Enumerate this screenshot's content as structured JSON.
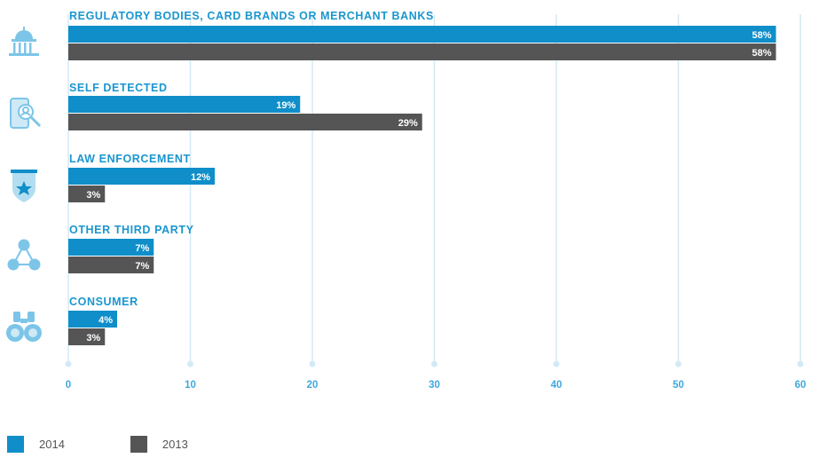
{
  "colors": {
    "series_2014": "#0f8ec9",
    "series_2013": "#555555",
    "category_text": "#1a96cf",
    "axis_text": "#3fa8dc",
    "gridline": "#d3eaf6",
    "icon": "#7cc5e8"
  },
  "chart_data": {
    "type": "bar",
    "orientation": "horizontal",
    "categories": [
      "REGULATORY BODIES, CARD BRANDS OR MERCHANT BANKS",
      "SELF DETECTED",
      "LAW ENFORCEMENT",
      "OTHER THIRD PARTY",
      "CONSUMER"
    ],
    "category_icons": [
      "government-building-icon",
      "mobile-search-icon",
      "police-badge-icon",
      "network-icon",
      "binoculars-icon"
    ],
    "series": [
      {
        "name": "2014",
        "values": [
          58,
          19,
          12,
          7,
          4
        ],
        "labels": [
          "58%",
          "19%",
          "12%",
          "7%",
          "4%"
        ]
      },
      {
        "name": "2013",
        "values": [
          58,
          29,
          3,
          7,
          3
        ],
        "labels": [
          "58%",
          "29%",
          "3%",
          "7%",
          "3%"
        ]
      }
    ],
    "xlim": [
      0,
      60
    ],
    "x_ticks": [
      0,
      10,
      20,
      30,
      40,
      50,
      60
    ],
    "x_tick_labels": [
      "0",
      "10",
      "20",
      "30",
      "40",
      "50",
      "60"
    ],
    "grid": true,
    "legend_position": "bottom-left"
  },
  "legend": {
    "item_2014": "2014",
    "item_2013": "2013"
  }
}
